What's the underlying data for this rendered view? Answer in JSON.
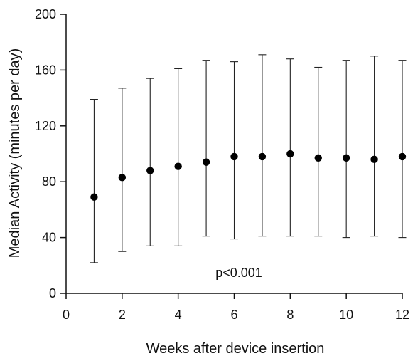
{
  "chart_data": {
    "type": "scatter",
    "xlabel": "Weeks after device insertion",
    "ylabel": "Median Activity (minutes per day)",
    "annotation": "p<0.001",
    "xlim": [
      0,
      12
    ],
    "ylim": [
      0,
      200
    ],
    "x_ticks": [
      "0",
      "2",
      "4",
      "6",
      "8",
      "10",
      "12"
    ],
    "y_ticks": [
      "0",
      "40",
      "80",
      "120",
      "160",
      "200"
    ],
    "grid": false,
    "points": [
      {
        "x": 1,
        "y": 69,
        "low": 22,
        "high": 139
      },
      {
        "x": 2,
        "y": 83,
        "low": 30,
        "high": 147
      },
      {
        "x": 3,
        "y": 88,
        "low": 34,
        "high": 154
      },
      {
        "x": 4,
        "y": 91,
        "low": 34,
        "high": 161
      },
      {
        "x": 5,
        "y": 94,
        "low": 41,
        "high": 167
      },
      {
        "x": 6,
        "y": 98,
        "low": 39,
        "high": 166
      },
      {
        "x": 7,
        "y": 98,
        "low": 41,
        "high": 171
      },
      {
        "x": 8,
        "y": 100,
        "low": 41,
        "high": 168
      },
      {
        "x": 9,
        "y": 97,
        "low": 41,
        "high": 162
      },
      {
        "x": 10,
        "y": 97,
        "low": 40,
        "high": 167
      },
      {
        "x": 11,
        "y": 96,
        "low": 41,
        "high": 170
      },
      {
        "x": 12,
        "y": 98,
        "low": 40,
        "high": 167
      }
    ],
    "colors": {
      "axis": "#111111",
      "marker": "#000000",
      "error_bar": "#222222"
    }
  }
}
